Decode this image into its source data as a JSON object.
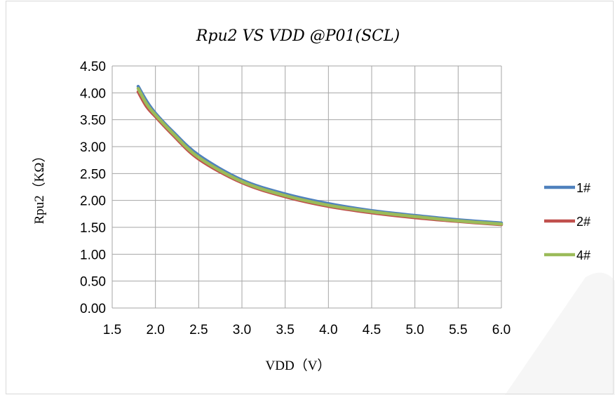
{
  "chart_data": {
    "type": "line",
    "title": "Rpu2 VS VDD @P01(SCL)",
    "xlabel": "VDD（V）",
    "ylabel": "Rpu2（KΩ）",
    "xlim": [
      1.5,
      6.0
    ],
    "ylim": [
      0.0,
      4.5
    ],
    "x_ticks": [
      "1.5",
      "2.0",
      "2.5",
      "3.0",
      "3.5",
      "4.0",
      "4.5",
      "5.0",
      "5.5",
      "6.0"
    ],
    "y_ticks": [
      "0.00",
      "0.50",
      "1.00",
      "1.50",
      "2.00",
      "2.50",
      "3.00",
      "3.50",
      "4.00",
      "4.50"
    ],
    "grid": true,
    "legend_position": "right",
    "series": [
      {
        "name": "1#",
        "color": "#4f81bd",
        "x": [
          1.8,
          1.9,
          2.0,
          2.2,
          2.5,
          3.0,
          3.5,
          4.0,
          4.5,
          5.0,
          5.5,
          6.0
        ],
        "y": [
          4.12,
          3.84,
          3.62,
          3.28,
          2.84,
          2.38,
          2.12,
          1.94,
          1.81,
          1.72,
          1.64,
          1.58
        ]
      },
      {
        "name": "2#",
        "color": "#c0504d",
        "x": [
          1.8,
          1.9,
          2.0,
          2.2,
          2.5,
          3.0,
          3.5,
          4.0,
          4.5,
          5.0,
          5.5,
          6.0
        ],
        "y": [
          4.02,
          3.74,
          3.56,
          3.22,
          2.77,
          2.33,
          2.07,
          1.89,
          1.77,
          1.68,
          1.61,
          1.55
        ]
      },
      {
        "name": "4#",
        "color": "#9bbb59",
        "x": [
          1.8,
          1.9,
          2.0,
          2.2,
          2.5,
          3.0,
          3.5,
          4.0,
          4.5,
          5.0,
          5.5,
          6.0
        ],
        "y": [
          4.08,
          3.79,
          3.59,
          3.25,
          2.8,
          2.35,
          2.09,
          1.91,
          1.79,
          1.7,
          1.62,
          1.56
        ]
      }
    ]
  }
}
